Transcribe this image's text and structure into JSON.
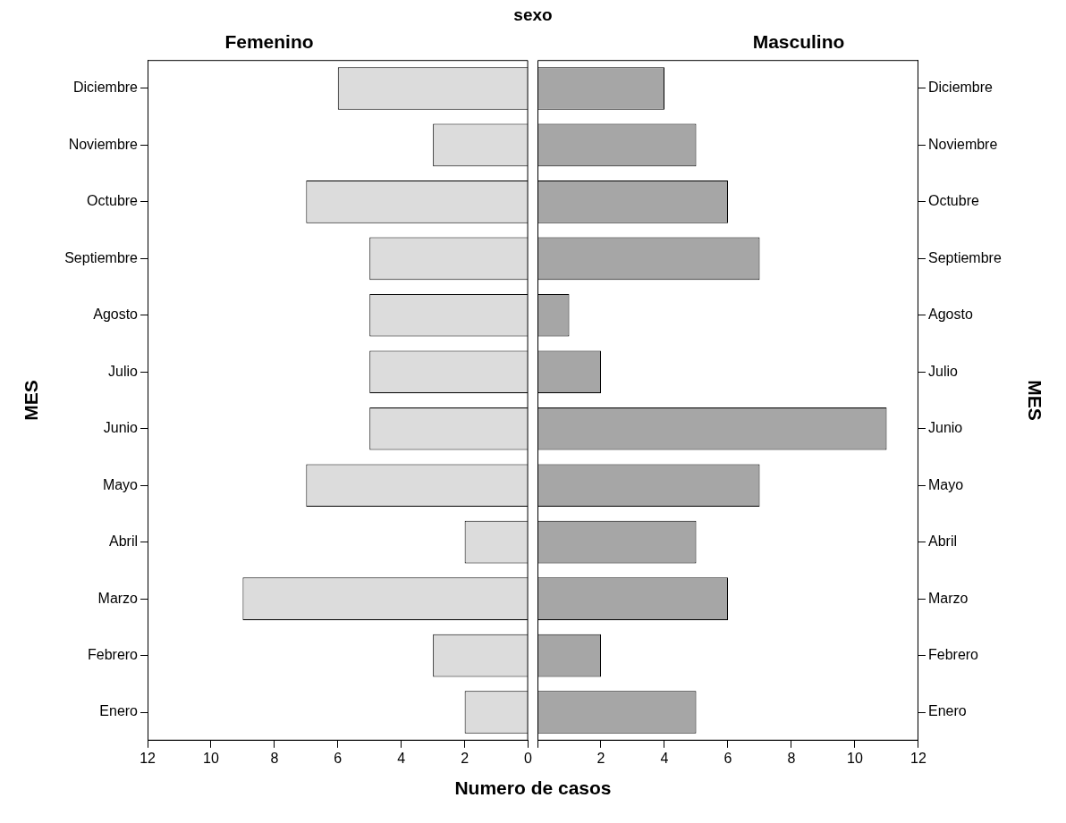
{
  "chart_data": [
    {
      "type": "bar",
      "orientation": "horizontal",
      "title": "Femenino",
      "annotations": [
        "sexo"
      ],
      "xlabel": "Numero de casos",
      "ylabel": "MES",
      "categories": [
        "Diciembre",
        "Noviembre",
        "Octubre",
        "Septiembre",
        "Agosto",
        "Julio",
        "Junio",
        "Mayo",
        "Abril",
        "Marzo",
        "Febrero",
        "Enero"
      ],
      "values": [
        6,
        3,
        7,
        5,
        5,
        5,
        5,
        7,
        2,
        9,
        3,
        2
      ],
      "color": "#dcdcdc",
      "xlim": [
        12,
        0
      ],
      "xticks": [
        12,
        10,
        8,
        6,
        4,
        2,
        0
      ]
    },
    {
      "type": "bar",
      "orientation": "horizontal",
      "title": "Masculino",
      "ylabel": "MES",
      "categories": [
        "Diciembre",
        "Noviembre",
        "Octubre",
        "Septiembre",
        "Agosto",
        "Julio",
        "Junio",
        "Mayo",
        "Abril",
        "Marzo",
        "Febrero",
        "Enero"
      ],
      "values": [
        4,
        5,
        6,
        7,
        1,
        2,
        11,
        7,
        5,
        6,
        2,
        5
      ],
      "color": "#a6a6a6",
      "xlim": [
        0,
        12
      ],
      "xticks": [
        {
          "value": 0,
          "label": null
        },
        2,
        4,
        6,
        8,
        10,
        12
      ]
    }
  ]
}
